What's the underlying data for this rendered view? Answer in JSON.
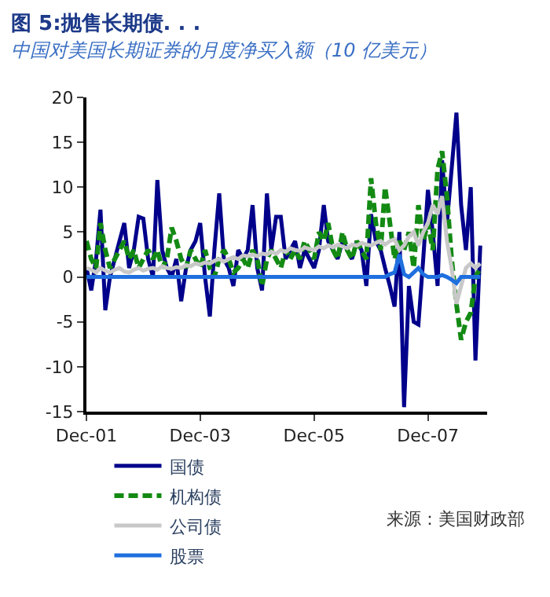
{
  "chart_data": {
    "type": "line",
    "title": "图 5:抛售长期债. . .",
    "subtitle": "中国对美国长期证券的月度净买入额（10 亿美元）",
    "x": [
      "2001-12",
      "2002-01",
      "2002-02",
      "2002-03",
      "2002-04",
      "2002-05",
      "2002-06",
      "2002-07",
      "2002-08",
      "2002-09",
      "2002-10",
      "2002-11",
      "2002-12",
      "2003-01",
      "2003-02",
      "2003-03",
      "2003-04",
      "2003-05",
      "2003-06",
      "2003-07",
      "2003-08",
      "2003-09",
      "2003-10",
      "2003-11",
      "2003-12",
      "2004-01",
      "2004-02",
      "2004-03",
      "2004-04",
      "2004-05",
      "2004-06",
      "2004-07",
      "2004-08",
      "2004-09",
      "2004-10",
      "2004-11",
      "2004-12",
      "2005-01",
      "2005-02",
      "2005-03",
      "2005-04",
      "2005-05",
      "2005-06",
      "2005-07",
      "2005-08",
      "2005-09",
      "2005-10",
      "2005-11",
      "2005-12",
      "2006-01",
      "2006-02",
      "2006-03",
      "2006-04",
      "2006-05",
      "2006-06",
      "2006-07",
      "2006-08",
      "2006-09",
      "2006-10",
      "2006-11",
      "2006-12",
      "2007-01",
      "2007-02",
      "2007-03",
      "2007-04",
      "2007-05",
      "2007-06",
      "2007-07",
      "2007-08",
      "2007-09",
      "2007-10",
      "2007-11",
      "2007-12",
      "2008-01",
      "2008-02",
      "2008-03",
      "2008-04",
      "2008-05",
      "2008-06",
      "2008-07",
      "2008-08",
      "2008-09",
      "2008-10",
      "2008-11"
    ],
    "series": [
      {
        "name": "国债",
        "color": "#00008b",
        "line_style": "solid",
        "values": [
          1,
          -1.5,
          2,
          7.5,
          -3.7,
          0,
          2,
          4,
          6,
          1,
          3,
          6.7,
          6.5,
          2,
          0,
          10.8,
          3,
          1,
          0,
          2,
          -2.7,
          1,
          3,
          4,
          6,
          0,
          -4.4,
          3,
          9.3,
          2,
          1,
          -1,
          3,
          2,
          3,
          8,
          1,
          -1.5,
          9.3,
          3,
          6.7,
          6.7,
          2,
          3,
          4,
          1,
          3,
          2,
          1,
          3,
          8,
          4,
          3,
          2,
          4,
          3,
          2,
          4,
          3,
          -1,
          7,
          4,
          3,
          1,
          -1,
          -3.3,
          5,
          -14.5,
          -1,
          -5,
          -5.3,
          2,
          9.7,
          5,
          -1,
          13,
          6,
          12,
          18.3,
          8,
          3,
          10,
          -9.3,
          3.5
        ]
      },
      {
        "name": "机构债",
        "color": "#138a13",
        "line_style": "dashed",
        "values": [
          4,
          2,
          1,
          6,
          3,
          1,
          2,
          3,
          4,
          2,
          3,
          1,
          2,
          3,
          2,
          3,
          1,
          2,
          5.5,
          4,
          2,
          1,
          3,
          2,
          1,
          3,
          1,
          0,
          2,
          3,
          2,
          0.5,
          1,
          2,
          1,
          3,
          2,
          -1,
          2,
          3,
          2,
          1,
          3,
          2,
          3,
          2,
          4,
          3,
          2,
          5,
          4,
          6,
          3,
          2,
          5,
          3,
          2,
          4,
          3,
          2,
          11,
          6,
          3,
          10,
          6,
          2,
          4,
          3,
          5,
          1,
          8,
          4,
          6,
          3,
          12,
          14,
          9,
          2,
          -3,
          -7,
          -5,
          -4,
          0,
          1
        ]
      },
      {
        "name": "公司债",
        "color": "#c8c8c8",
        "line_style": "solid",
        "values": [
          1,
          0.8,
          0.5,
          1,
          0.7,
          0.5,
          0.8,
          1,
          0.6,
          0.5,
          0.8,
          1,
          0.7,
          0.9,
          1,
          0.8,
          1.2,
          1,
          0.9,
          1.1,
          1,
          1.3,
          1.2,
          1.5,
          1.4,
          1.6,
          1.5,
          1.8,
          2,
          1.7,
          2,
          2.2,
          2,
          2.4,
          2.3,
          2.5,
          2.3,
          2.6,
          2.5,
          2.8,
          2.6,
          3,
          2.8,
          3.2,
          3,
          2.9,
          3.3,
          3.1,
          3,
          3.4,
          3.2,
          3.5,
          3.3,
          3.6,
          3.4,
          3.2,
          3.6,
          3.5,
          3.8,
          3.6,
          3.5,
          3.8,
          4,
          3.6,
          4,
          4.2,
          3,
          3.5,
          4.5,
          5,
          3.5,
          5,
          6,
          8,
          7,
          9,
          4,
          1,
          -3,
          -1,
          1,
          1.5,
          1,
          1.5
        ]
      },
      {
        "name": "股票",
        "color": "#1f6fdf",
        "line_style": "solid",
        "values": [
          0,
          0,
          0,
          0,
          0,
          0,
          0,
          0,
          0,
          0,
          0,
          0,
          0,
          0,
          0,
          0,
          0,
          0,
          0,
          0,
          0,
          0,
          0,
          0,
          0,
          0,
          0,
          0,
          0,
          0,
          0,
          0,
          0,
          0,
          0,
          0,
          0,
          0,
          0,
          0,
          0,
          0,
          0,
          0,
          0,
          0,
          0,
          0,
          0,
          0,
          0,
          0,
          0,
          0,
          0,
          0,
          0,
          0,
          0,
          0,
          0,
          0,
          0,
          0,
          0.3,
          0.5,
          2.5,
          0.3,
          0,
          0.5,
          1,
          0.3,
          0,
          0,
          0,
          0.2,
          0,
          -0.3,
          -0.7,
          0,
          0,
          0,
          0,
          0
        ]
      }
    ],
    "ylim": [
      -15,
      20
    ],
    "yticks": [
      -15,
      -10,
      -5,
      0,
      5,
      10,
      15,
      20
    ],
    "xlim": [
      "2001-12-01",
      "2008-12-15"
    ],
    "xticks": [
      {
        "value": "2001-12-01",
        "label": "Dec-01"
      },
      {
        "value": "2003-12-01",
        "label": "Dec-03"
      },
      {
        "value": "2005-12-01",
        "label": "Dec-05"
      },
      {
        "value": "2007-12-01",
        "label": "Dec-07"
      }
    ],
    "legend": "bottom",
    "marker": "none",
    "annotations": [
      "来源：美国财政部"
    ]
  }
}
